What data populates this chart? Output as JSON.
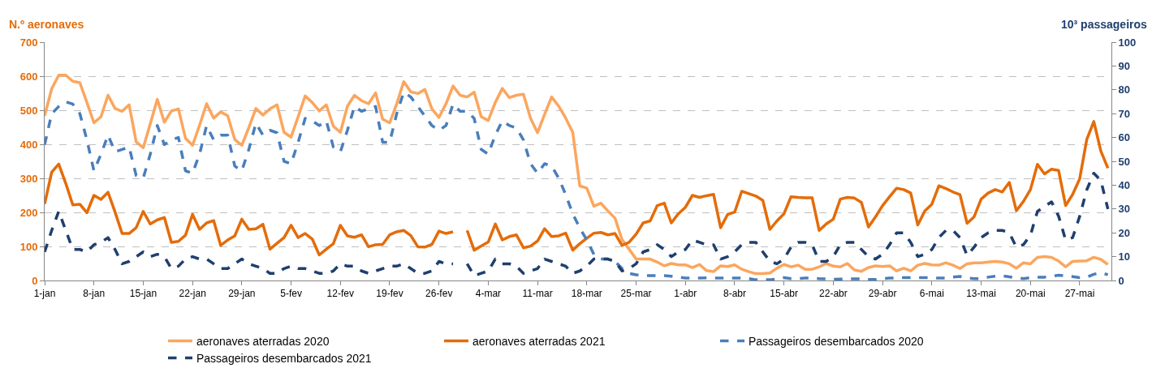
{
  "chart_data": {
    "type": "line",
    "ylabel": "N.º aeronaves",
    "y2label": "10³ passageiros",
    "categories": [
      "1-jan",
      null,
      null,
      null,
      null,
      null,
      null,
      "8-jan",
      null,
      null,
      null,
      null,
      null,
      null,
      "15-jan",
      null,
      null,
      null,
      null,
      null,
      null,
      "22-jan",
      null,
      null,
      null,
      null,
      null,
      null,
      "29-jan",
      null,
      null,
      null,
      null,
      null,
      null,
      "5-fev",
      null,
      null,
      null,
      null,
      null,
      null,
      "12-fev",
      null,
      null,
      null,
      null,
      null,
      null,
      "19-fev",
      null,
      null,
      null,
      null,
      null,
      null,
      "26-fev",
      null,
      null,
      null,
      null,
      null,
      null,
      "4-mar",
      null,
      null,
      null,
      null,
      null,
      null,
      "11-mar",
      null,
      null,
      null,
      null,
      null,
      null,
      "18-mar",
      null,
      null,
      null,
      null,
      null,
      null,
      "25-mar",
      null,
      null,
      null,
      null,
      null,
      null,
      "1-abr",
      null,
      null,
      null,
      null,
      null,
      null,
      "8-abr",
      null,
      null,
      null,
      null,
      null,
      null,
      "15-abr",
      null,
      null,
      null,
      null,
      null,
      null,
      "22-abr",
      null,
      null,
      null,
      null,
      null,
      null,
      "29-abr",
      null,
      null,
      null,
      null,
      null,
      null,
      "6-mai",
      null,
      null,
      null,
      null,
      null,
      null,
      "13-mai",
      null,
      null,
      null,
      null,
      null,
      null,
      "20-mai",
      null,
      null,
      null,
      null,
      null,
      null,
      "27-mai",
      null,
      null,
      null,
      null
    ],
    "series": [
      {
        "name": "aeronaves aterradas 2020",
        "color": "#fba65e",
        "line_style": "solid",
        "values": [
          484,
          563,
          603,
          603,
          585,
          581,
          523,
          463,
          481,
          544,
          505,
          497,
          516,
          407,
          390,
          460,
          532,
          465,
          498,
          504,
          418,
          397,
          456,
          519,
          477,
          495,
          484,
          414,
          397,
          449,
          505,
          486,
          504,
          516,
          435,
          421,
          481,
          542,
          523,
          498,
          516,
          453,
          435,
          512,
          544,
          528,
          519,
          551,
          474,
          463,
          519,
          584,
          554,
          549,
          561,
          504,
          479,
          519,
          571,
          544,
          539,
          553,
          481,
          470,
          523,
          564,
          537,
          544,
          547,
          477,
          434,
          488,
          539,
          512,
          477,
          435,
          278,
          271,
          218,
          227,
          204,
          183,
          120,
          92,
          63,
          63,
          63,
          54,
          43,
          50,
          46,
          46,
          38,
          47,
          29,
          26,
          43,
          41,
          46,
          33,
          26,
          20,
          20,
          22,
          36,
          47,
          40,
          45,
          33,
          33,
          40,
          50,
          42,
          40,
          50,
          31,
          27,
          38,
          43,
          41,
          43,
          28,
          36,
          28,
          45,
          50,
          46,
          45,
          52,
          45,
          35,
          49,
          52,
          52,
          54,
          56,
          54,
          49,
          36,
          52,
          49,
          68,
          70,
          68,
          57,
          40,
          56,
          57,
          58,
          68,
          62,
          47
        ]
      },
      {
        "name": "aeronaves aterradas 2021",
        "color": "#e46c0a",
        "line_style": "solid",
        "values": [
          225,
          318,
          342,
          285,
          222,
          224,
          199,
          250,
          238,
          259,
          201,
          138,
          138,
          155,
          203,
          166,
          178,
          185,
          112,
          115,
          133,
          194,
          150,
          169,
          176,
          103,
          119,
          131,
          180,
          150,
          152,
          165,
          92,
          109,
          126,
          162,
          126,
          138,
          122,
          75,
          92,
          108,
          162,
          131,
          127,
          134,
          99,
          105,
          106,
          134,
          143,
          147,
          132,
          99,
          98,
          106,
          145,
          138,
          143,
          null,
          147,
          89,
          101,
          113,
          166,
          119,
          129,
          134,
          96,
          101,
          116,
          152,
          129,
          131,
          139,
          89,
          108,
          124,
          139,
          141,
          134,
          138,
          103,
          112,
          136,
          169,
          175,
          220,
          227,
          169,
          196,
          215,
          250,
          244,
          249,
          253,
          155,
          194,
          201,
          262,
          255,
          248,
          235,
          150,
          175,
          196,
          246,
          244,
          243,
          243,
          147,
          166,
          180,
          239,
          244,
          242,
          229,
          157,
          187,
          220,
          246,
          271,
          267,
          257,
          163,
          204,
          224,
          278,
          270,
          260,
          252,
          168,
          187,
          239,
          257,
          267,
          260,
          288,
          205,
          232,
          267,
          341,
          313,
          327,
          323,
          220,
          253,
          299,
          414,
          467,
          380,
          330
        ]
      },
      {
        "name": "Passageiros desembarcados 2020",
        "color": "#4a7ebb",
        "line_style": "dashed",
        "axis": "y2",
        "values": [
          57,
          70,
          73,
          75,
          74,
          70,
          59,
          46,
          53,
          61,
          54,
          55,
          56,
          44,
          43,
          53,
          65,
          57,
          59,
          60,
          46,
          45,
          53,
          65,
          59,
          61,
          61,
          48,
          46,
          55,
          66,
          61,
          63,
          62,
          50,
          49,
          58,
          68,
          67,
          65,
          67,
          56,
          54,
          63,
          73,
          71,
          72,
          73,
          58,
          58,
          70,
          79,
          77,
          73,
          69,
          65,
          63,
          65,
          74,
          71,
          71,
          68,
          55,
          53,
          61,
          67,
          65,
          64,
          59,
          49,
          45,
          49,
          48,
          43,
          36,
          28,
          22,
          17,
          11,
          9,
          9,
          8,
          5,
          3,
          2.4,
          2,
          2,
          2,
          2,
          1.8,
          1.4,
          1,
          1,
          1,
          1.1,
          1,
          1,
          1,
          1,
          1,
          0.8,
          0.3,
          0.3,
          0.3,
          0.6,
          1.2,
          0.8,
          0.8,
          1,
          1,
          0.8,
          0.7,
          0.5,
          0.6,
          0.7,
          0.7,
          0.7,
          0.5,
          0.4,
          0.8,
          1,
          1.1,
          1.2,
          1.2,
          1.2,
          1.2,
          1.1,
          1,
          1,
          1.4,
          1.7,
          1,
          0.8,
          0.8,
          1.4,
          1.8,
          2,
          1.5,
          1.2,
          0.8,
          1.2,
          1.4,
          1.4,
          1.8,
          2.2,
          2,
          1.6,
          1.2,
          1.4,
          2.6,
          3.3,
          2.4
        ]
      },
      {
        "name": "Passageiros desembarcados 2021",
        "color": "#1f3f6e",
        "line_style": "dashed",
        "axis": "y2",
        "values": [
          12,
          21,
          29,
          21,
          13,
          13,
          12,
          15,
          16,
          18,
          13,
          7,
          8,
          10,
          12,
          10,
          11,
          10,
          5,
          6,
          9,
          10,
          9,
          9,
          7,
          5,
          5,
          7,
          9,
          7,
          6,
          5,
          3,
          3,
          5,
          6,
          5,
          5,
          4,
          3,
          3,
          4,
          7,
          6,
          6,
          4,
          3,
          4,
          5,
          6,
          6,
          7,
          5,
          3,
          3,
          4,
          8,
          7,
          7,
          null,
          7,
          2,
          3,
          4,
          9,
          7,
          7,
          6,
          3,
          4,
          5,
          9,
          8,
          7,
          6,
          3,
          4,
          6,
          9,
          9,
          9,
          8,
          4,
          5,
          7,
          12,
          13,
          15,
          13,
          10,
          12,
          13,
          17,
          16,
          15,
          15,
          9,
          10,
          12,
          15,
          16,
          16,
          12,
          8,
          7,
          9,
          14,
          16,
          16,
          15,
          8,
          8,
          10,
          15,
          16,
          16,
          13,
          10,
          9,
          11,
          15,
          20,
          20,
          16,
          10,
          11,
          13,
          18,
          21,
          21,
          18,
          10.5,
          14,
          18,
          20,
          21,
          21,
          20,
          14,
          15,
          19,
          29,
          31,
          33,
          27,
          17,
          18,
          27,
          38,
          45,
          42,
          30
        ]
      }
    ],
    "ylim": [
      0,
      700
    ],
    "yticks": [
      0,
      100,
      200,
      300,
      400,
      500,
      600,
      700
    ],
    "y2lim": [
      0,
      100
    ],
    "y2ticks": [
      0,
      10,
      20,
      30,
      40,
      50,
      60,
      70,
      80,
      90,
      100
    ],
    "grid": "y",
    "legend": "bottom",
    "marker": "none"
  }
}
